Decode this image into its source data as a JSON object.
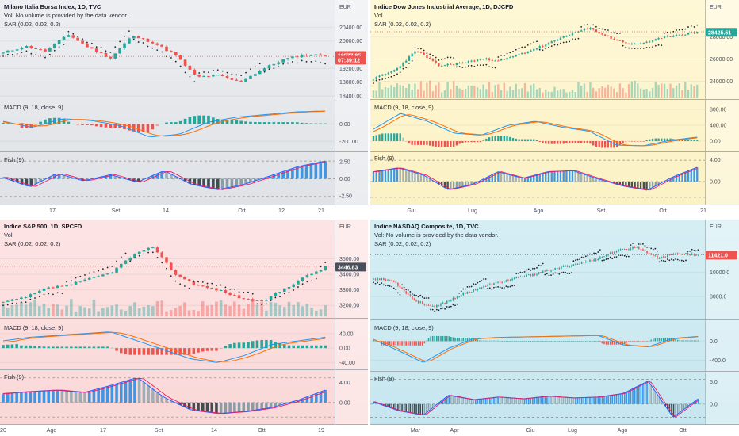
{
  "colors": {
    "up": "#26a69a",
    "down": "#ef5350",
    "sar": "#1f2430",
    "macd": "#2196f3",
    "signal": "#ff6d00",
    "fisher": "#2962ff",
    "trigger": "#e91e63"
  },
  "chart_data": [
    {
      "type": "candlestick",
      "title": "Milano Italia Borsa Index, 1D, TVC",
      "indicators": [
        "Vol: No volume is provided by the data vendor.",
        "SAR (0.02, 0.02, 0.2)"
      ],
      "currency": "EUR",
      "last_price": "19577.95",
      "countdown": "07:39:12",
      "price_ticks": [
        "20400.00",
        "20000.00",
        "19200.00",
        "18800.00",
        "18400.00"
      ],
      "x_ticks": [
        "17",
        "Set",
        "14",
        "Ott",
        "12",
        "21"
      ],
      "ylim": [
        18400,
        20500
      ],
      "panel_macd": {
        "label": "MACD (9, 18, close, 9)",
        "ticks": [
          "0.00",
          "-200.00"
        ],
        "ylim": [
          -280,
          150
        ]
      },
      "panel_fisher": {
        "label": "Fish (9)",
        "ticks": [
          "2.50",
          "0.00",
          "-2.50"
        ],
        "ylim": [
          -3.2,
          3.2
        ]
      }
    },
    {
      "type": "candlestick",
      "title": "Indice Dow Jones Industrial Average, 1D, DJCFD",
      "indicators": [
        "Vol",
        "SAR (0.02, 0.02, 0.2)"
      ],
      "currency": "EUR",
      "last_price": "28425.51",
      "price_ticks": [
        "28000.00",
        "26000.00",
        "24000.00"
      ],
      "x_ticks": [
        "Giu",
        "Lug",
        "Ago",
        "Set",
        "Ott",
        "21"
      ],
      "ylim": [
        22800,
        29200
      ],
      "panel_macd": {
        "label": "MACD (9, 18, close, 9)",
        "ticks": [
          "800.00",
          "400.00",
          "0.00"
        ],
        "ylim": [
          -180,
          800
        ]
      },
      "panel_fisher": {
        "label": "Fish (9)",
        "ticks": [
          "4.00",
          "0.00"
        ],
        "ylim": [
          -3.5,
          4.5
        ]
      }
    },
    {
      "type": "candlestick",
      "title": "Indice S&P 500, 1D, SPCFD",
      "indicators": [
        "Vol",
        "SAR (0.02, 0.02, 0.2)"
      ],
      "currency": "EUR",
      "last_price": "3446.83",
      "price_ticks": [
        "3500.00",
        "3400.00",
        "3300.00",
        "3200.00"
      ],
      "x_ticks": [
        "20",
        "Ago",
        "17",
        "Set",
        "14",
        "Ott",
        "19"
      ],
      "ylim": [
        3150,
        3600
      ],
      "panel_macd": {
        "label": "MACD (9, 18, close, 9)",
        "ticks": [
          "40.00",
          "0.00",
          "-40.00"
        ],
        "ylim": [
          -50,
          55
        ]
      },
      "panel_fisher": {
        "label": "Fish (9)",
        "ticks": [
          "4.00",
          "0.00"
        ],
        "ylim": [
          -3.5,
          5.5
        ]
      }
    },
    {
      "type": "candlestick",
      "title": "Indice NASDAQ Composite, 1D, TVC",
      "indicators": [
        "Vol: No volume is provided by the data vendor.",
        "SAR (0.02, 0.02, 0.2)"
      ],
      "currency": "EUR",
      "last_price": "11421.0",
      "price_ticks": [
        "10000.0",
        "8000.0"
      ],
      "x_ticks": [
        "Mar",
        "Apr",
        "Giu",
        "Lug",
        "Ago",
        "Ott"
      ],
      "ylim": [
        6500,
        12400
      ],
      "panel_macd": {
        "label": "MACD (9, 18, close, 9)",
        "ticks": [
          "0.0",
          "-400.0"
        ],
        "ylim": [
          -560,
          240
        ]
      },
      "panel_fisher": {
        "label": "Fish (9)",
        "ticks": [
          "5.0",
          "0.0"
        ],
        "ylim": [
          -3.6,
          6.2
        ]
      }
    }
  ]
}
